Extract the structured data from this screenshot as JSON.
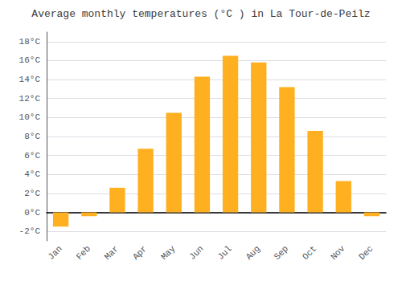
{
  "chart_data": {
    "type": "bar",
    "title": "Average monthly temperatures (°C ) in La Tour-de-Peilz",
    "categories": [
      "Jan",
      "Feb",
      "Mar",
      "Apr",
      "May",
      "Jun",
      "Jul",
      "Aug",
      "Sep",
      "Oct",
      "Nov",
      "Dec"
    ],
    "values": [
      -1.5,
      -0.4,
      2.6,
      6.7,
      10.5,
      14.3,
      16.5,
      15.8,
      13.2,
      8.6,
      3.3,
      -0.4
    ],
    "color": "#FFB020",
    "ylim": [
      -3,
      19
    ],
    "yticks": [
      {
        "value": -2,
        "label": "-2°C"
      },
      {
        "value": 0,
        "label": "0°C"
      },
      {
        "value": 2,
        "label": "2°C"
      },
      {
        "value": 4,
        "label": "4°C"
      },
      {
        "value": 6,
        "label": "6°C"
      },
      {
        "value": 8,
        "label": "8°C"
      },
      {
        "value": 10,
        "label": "10°C"
      },
      {
        "value": 12,
        "label": "12°C"
      },
      {
        "value": 14,
        "label": "14°C"
      },
      {
        "value": 16,
        "label": "16°C"
      },
      {
        "value": 18,
        "label": "18°C"
      }
    ],
    "grid": true
  }
}
